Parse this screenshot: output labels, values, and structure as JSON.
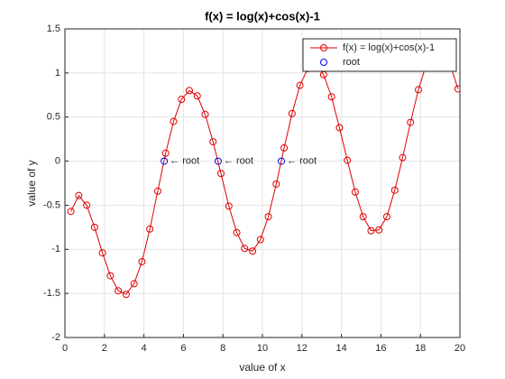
{
  "chart_data": {
    "type": "line",
    "title": "f(x) = log(x)+cos(x)-1",
    "x_label": "value of x",
    "y_label": "value of y",
    "x": [
      0.3,
      0.7,
      1.1,
      1.5,
      1.9,
      2.3,
      2.7,
      3.1,
      3.5,
      3.9,
      4.3,
      4.7,
      5.1,
      5.5,
      5.9,
      6.3,
      6.7,
      7.1,
      7.5,
      7.9,
      8.3,
      8.7,
      9.1,
      9.5,
      9.9,
      10.3,
      10.7,
      11.1,
      11.5,
      11.9,
      12.3,
      12.7,
      13.1,
      13.5,
      13.9,
      14.3,
      14.7,
      15.1,
      15.5,
      15.9,
      16.3,
      16.7,
      17.1,
      17.5,
      17.9,
      18.3,
      18.7,
      19.1,
      19.5,
      19.9
    ],
    "series": [
      {
        "name": "f(x) = log(x)+cos(x)-1",
        "color": "#e00000",
        "values": [
          -0.57,
          -0.39,
          -0.5,
          -0.75,
          -1.04,
          -1.3,
          -1.47,
          -1.51,
          -1.39,
          -1.14,
          -0.77,
          -0.34,
          0.09,
          0.45,
          0.7,
          0.8,
          0.74,
          0.53,
          0.22,
          -0.14,
          -0.51,
          -0.81,
          -0.99,
          -1.02,
          -0.89,
          -0.63,
          -0.26,
          0.15,
          0.54,
          0.86,
          1.05,
          1.1,
          0.98,
          0.73,
          0.38,
          0.01,
          -0.35,
          -0.63,
          -0.79,
          -0.78,
          -0.63,
          -0.33,
          0.04,
          0.44,
          0.81,
          1.1,
          1.26,
          1.26,
          1.1,
          0.82
        ]
      },
      {
        "name": "root",
        "color": "#0000e0",
        "x": [
          5.03,
          7.76,
          10.96
        ],
        "values": [
          0,
          0,
          0
        ]
      }
    ],
    "annotations": [
      "← root",
      "← root",
      "← root"
    ],
    "xlim": [
      0,
      20
    ],
    "xticks": [
      0,
      2,
      4,
      6,
      8,
      10,
      12,
      14,
      16,
      18,
      20
    ],
    "ylim": [
      -2,
      1.5
    ],
    "yticks": [
      -2,
      -1.5,
      -1,
      -0.5,
      0,
      0.5,
      1,
      1.5
    ],
    "grid": true,
    "legend": "northeast"
  }
}
